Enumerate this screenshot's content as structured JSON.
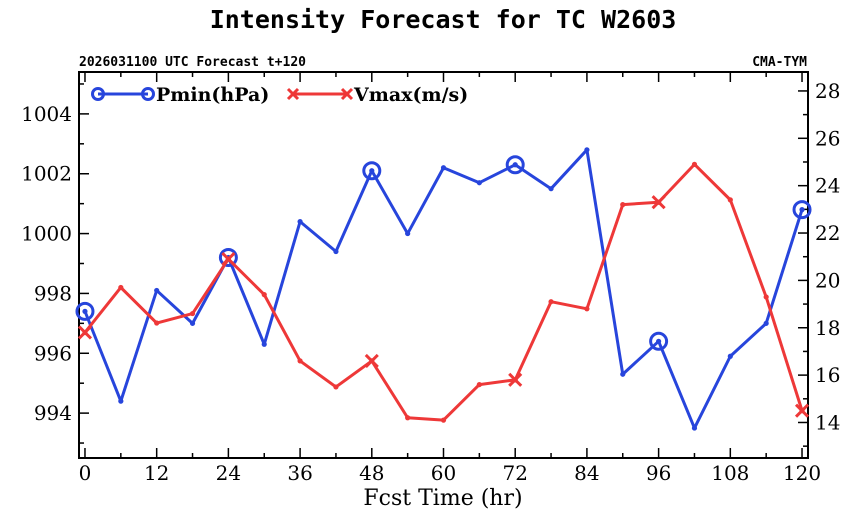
{
  "chart_data": {
    "type": "line",
    "title": "Intensity Forecast for TC W2603",
    "subtitle_left": "2026031100 UTC Forecast t+120",
    "subtitle_right": "CMA-TYM",
    "xlabel": "Fcst Time (hr)",
    "xlim": [
      -1,
      121
    ],
    "xticks": [
      0,
      12,
      24,
      36,
      48,
      60,
      72,
      84,
      96,
      108,
      120
    ],
    "ylim_left": [
      992.5,
      1005.4
    ],
    "yticks_left": [
      994,
      996,
      998,
      1000,
      1002,
      1004
    ],
    "ylim_right": [
      12.5,
      28.8
    ],
    "yticks_right": [
      14,
      16,
      18,
      20,
      22,
      24,
      26,
      28
    ],
    "series": [
      {
        "name": "Pmin(hPa)",
        "axis": "left",
        "color": "#2745dc",
        "marker": "circle",
        "x": [
          0,
          6,
          12,
          18,
          24,
          30,
          36,
          42,
          48,
          54,
          60,
          66,
          72,
          78,
          84,
          90,
          96,
          102,
          108,
          114,
          120
        ],
        "values": [
          997.4,
          994.4,
          998.1,
          997.0,
          999.2,
          996.3,
          1000.4,
          999.4,
          1002.1,
          1000.0,
          1002.2,
          1001.7,
          1002.3,
          1001.5,
          1002.8,
          995.3,
          996.4,
          993.5,
          995.9,
          997.0,
          1000.8
        ],
        "marker_x": [
          0,
          24,
          48,
          72,
          96,
          120
        ]
      },
      {
        "name": "Vmax(m/s)",
        "axis": "right",
        "color": "#ee3838",
        "marker": "x",
        "x": [
          0,
          6,
          12,
          18,
          24,
          30,
          36,
          42,
          48,
          54,
          60,
          66,
          72,
          78,
          84,
          90,
          96,
          102,
          108,
          114,
          120
        ],
        "values": [
          17.8,
          19.7,
          18.2,
          18.6,
          20.9,
          19.4,
          16.6,
          15.5,
          16.6,
          14.2,
          14.1,
          15.6,
          15.8,
          19.1,
          18.8,
          23.2,
          23.3,
          24.9,
          23.4,
          19.3,
          14.5
        ],
        "marker_x": [
          0,
          24,
          48,
          72,
          96,
          120
        ]
      }
    ]
  }
}
